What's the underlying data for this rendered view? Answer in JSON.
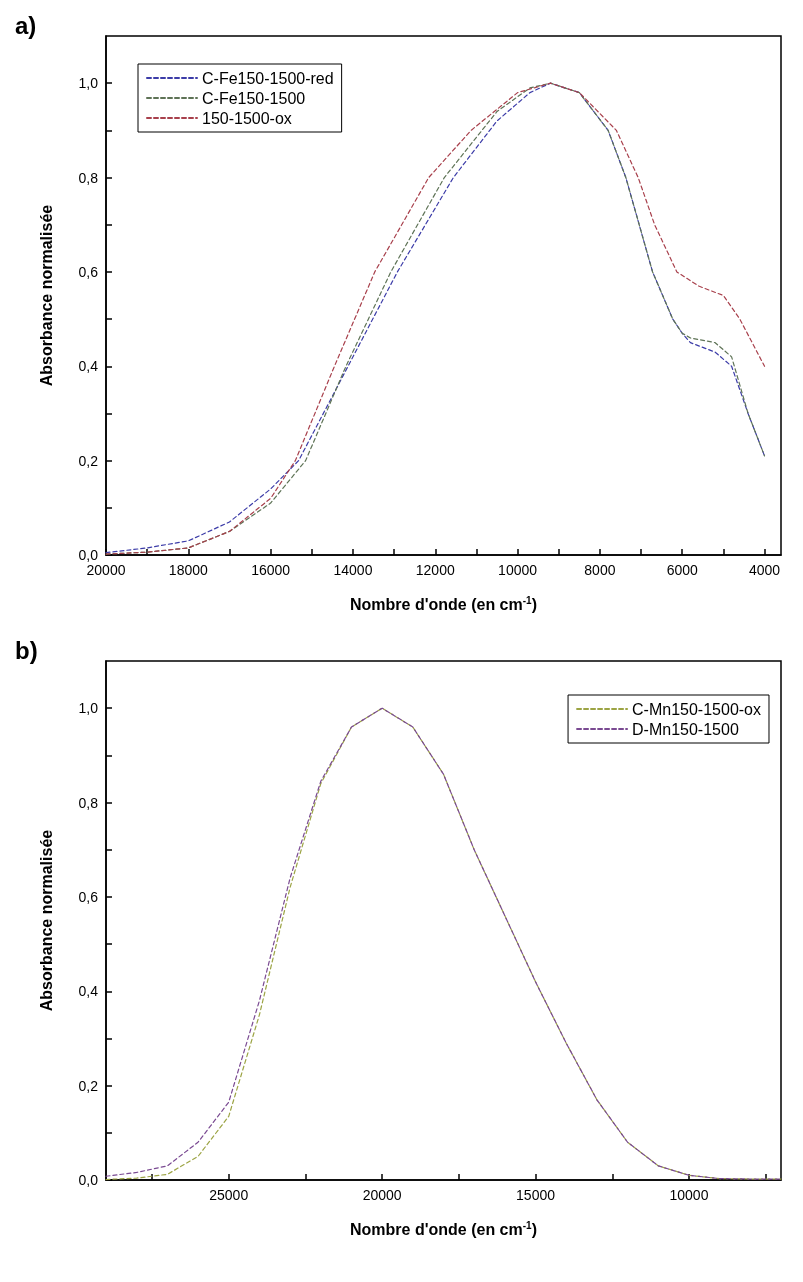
{
  "chart_data": [
    {
      "type": "line",
      "title": "a)",
      "xlabel": "Nombre d'onde (en cm$^{-1}$)",
      "ylabel": "Absorbance normalisée",
      "xlim": [
        20000,
        3600
      ],
      "xticks": [
        20000,
        {
          "value": 19000,
          "label": null
        },
        18000,
        {
          "value": 17000,
          "label": null
        },
        16000,
        {
          "value": 15000,
          "label": null
        },
        14000,
        {
          "value": 13000,
          "label": null
        },
        12000,
        {
          "value": 11000,
          "label": null
        },
        10000,
        {
          "value": 9000,
          "label": null
        },
        8000,
        {
          "value": 7000,
          "label": null
        },
        6000,
        {
          "value": 5000,
          "label": null
        },
        4000
      ],
      "ylim": [
        0,
        1.1
      ],
      "yticks": [
        {
          "value": 0,
          "label": "0,0"
        },
        {
          "value": 0.1,
          "label": null
        },
        {
          "value": 0.2,
          "label": "0,2"
        },
        {
          "value": 0.3,
          "label": null
        },
        {
          "value": 0.4,
          "label": "0,4"
        },
        {
          "value": 0.5,
          "label": null
        },
        {
          "value": 0.6,
          "label": "0,6"
        },
        {
          "value": 0.7,
          "label": null
        },
        {
          "value": 0.8,
          "label": "0,8"
        },
        {
          "value": 0.9,
          "label": null
        },
        {
          "value": 1.0,
          "label": "1,0"
        }
      ],
      "grid": false,
      "legend": "top left",
      "line_style": "dashed",
      "marker": "none",
      "series": [
        {
          "name": "C-Fe150-1500-red",
          "color": "#3c3ca8",
          "x": [
            20000,
            19000,
            18000,
            17000,
            16000,
            15320,
            14120,
            12920,
            11560,
            10500,
            9700,
            9200,
            8500,
            7800,
            7370,
            6720,
            6230,
            6000,
            5800,
            5200,
            4800,
            4400,
            4000
          ],
          "values": [
            0.005,
            0.015,
            0.03,
            0.07,
            0.14,
            0.2,
            0.4,
            0.6,
            0.8,
            0.92,
            0.98,
            1.0,
            0.98,
            0.9,
            0.8,
            0.6,
            0.5,
            0.47,
            0.45,
            0.43,
            0.4,
            0.3,
            0.21
          ]
        },
        {
          "name": "C-Fe150-1500",
          "color": "#5e7356",
          "x": [
            20000,
            19000,
            18000,
            17000,
            16000,
            15150,
            14170,
            13080,
            11780,
            10500,
            9700,
            9200,
            8500,
            7800,
            7370,
            6720,
            6230,
            6000,
            5800,
            5200,
            4800,
            4400,
            4000
          ],
          "values": [
            0.002,
            0.006,
            0.015,
            0.05,
            0.11,
            0.2,
            0.4,
            0.6,
            0.8,
            0.94,
            0.99,
            1.0,
            0.98,
            0.9,
            0.8,
            0.6,
            0.5,
            0.47,
            0.46,
            0.45,
            0.42,
            0.3,
            0.21
          ]
        },
        {
          "name": "150-1500-ox",
          "color": "#a8404c",
          "x": [
            20000,
            19000,
            18000,
            17000,
            16000,
            15400,
            14450,
            13470,
            12160,
            11130,
            10000,
            9200,
            8500,
            7600,
            7070,
            6670,
            6130,
            5600,
            5000,
            4600,
            4000
          ],
          "values": [
            0.002,
            0.006,
            0.015,
            0.05,
            0.12,
            0.2,
            0.4,
            0.6,
            0.8,
            0.9,
            0.98,
            1.0,
            0.98,
            0.9,
            0.8,
            0.7,
            0.6,
            0.57,
            0.55,
            0.5,
            0.4
          ]
        }
      ]
    },
    {
      "type": "line",
      "title": "b)",
      "xlabel": "Nombre d'onde (en cm$^{-1}$)",
      "ylabel": "Absorbance normalisée",
      "xlim": [
        29000,
        7000
      ],
      "xticks": [
        {
          "value": 27500,
          "label": null
        },
        25000,
        {
          "value": 22500,
          "label": null
        },
        20000,
        {
          "value": 17500,
          "label": null
        },
        15000,
        {
          "value": 12500,
          "label": null
        },
        10000,
        {
          "value": 7500,
          "label": null
        }
      ],
      "ylim": [
        0,
        1.1
      ],
      "yticks": [
        {
          "value": 0,
          "label": "0,0"
        },
        {
          "value": 0.1,
          "label": null
        },
        {
          "value": 0.2,
          "label": "0,2"
        },
        {
          "value": 0.3,
          "label": null
        },
        {
          "value": 0.4,
          "label": "0,4"
        },
        {
          "value": 0.5,
          "label": null
        },
        {
          "value": 0.6,
          "label": "0,6"
        },
        {
          "value": 0.7,
          "label": null
        },
        {
          "value": 0.8,
          "label": "0,8"
        },
        {
          "value": 0.9,
          "label": null
        },
        {
          "value": 1.0,
          "label": "1,0"
        }
      ],
      "grid": false,
      "legend": "top right",
      "line_style": "dashed",
      "marker": "none",
      "series": [
        {
          "name": "C-Mn150-1500-ox",
          "color": "#9ca444",
          "x": [
            29000,
            28000,
            27000,
            26000,
            25000,
            24000,
            23000,
            22000,
            21000,
            20000,
            19000,
            18000,
            17000,
            16000,
            15000,
            14000,
            13000,
            12000,
            11000,
            10000,
            9000,
            8000,
            7000
          ],
          "values": [
            0.001,
            0.004,
            0.012,
            0.05,
            0.135,
            0.35,
            0.62,
            0.84,
            0.96,
            1.0,
            0.96,
            0.86,
            0.7,
            0.56,
            0.42,
            0.29,
            0.17,
            0.08,
            0.03,
            0.01,
            0.003,
            0.002,
            0.002
          ]
        },
        {
          "name": "D-Mn150-1500",
          "color": "#7a4a92",
          "x": [
            29000,
            28000,
            27000,
            26000,
            25000,
            24000,
            23000,
            22000,
            21000,
            20000,
            19000,
            18000,
            17000,
            16000,
            15000,
            14000,
            13000,
            12000,
            11000,
            10000,
            9000,
            8000,
            7000
          ],
          "values": [
            0.008,
            0.016,
            0.03,
            0.08,
            0.165,
            0.38,
            0.64,
            0.845,
            0.96,
            1.0,
            0.96,
            0.86,
            0.7,
            0.56,
            0.42,
            0.29,
            0.17,
            0.08,
            0.03,
            0.01,
            0.003,
            0.002,
            0.002
          ]
        }
      ]
    }
  ]
}
